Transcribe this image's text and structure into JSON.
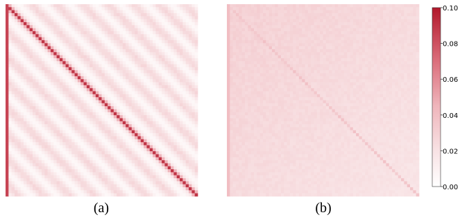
{
  "chart_data": [
    {
      "type": "heatmap",
      "caption": "(a)",
      "pattern": "strong main diagonal with periodic parallel off-diagonal stripes and a strong first column",
      "approx_values": {
        "diagonal": 0.09,
        "first_column": 0.085,
        "near_diagonal": 0.045,
        "stripe_peak": 0.028,
        "stripe_trough": 0.005
      }
    },
    {
      "type": "heatmap",
      "caption": "(b)",
      "pattern": "faint main diagonal, nearly uniform low values, slightly stronger toward the top-left",
      "approx_values": {
        "diagonal": 0.035,
        "background_top_left": 0.03,
        "background_bottom_right": 0.018,
        "first_column": 0.04
      }
    }
  ],
  "colorbar": {
    "min": 0.0,
    "max": 0.1,
    "ticks": [
      {
        "value": 0.1,
        "label": "0.10"
      },
      {
        "value": 0.08,
        "label": "0.08"
      },
      {
        "value": 0.06,
        "label": "0.06"
      },
      {
        "value": 0.04,
        "label": "0.04"
      },
      {
        "value": 0.02,
        "label": "0.02"
      },
      {
        "value": 0.0,
        "label": "0.00"
      }
    ],
    "color_low": "#ffffff",
    "color_high": "#b2182b"
  }
}
